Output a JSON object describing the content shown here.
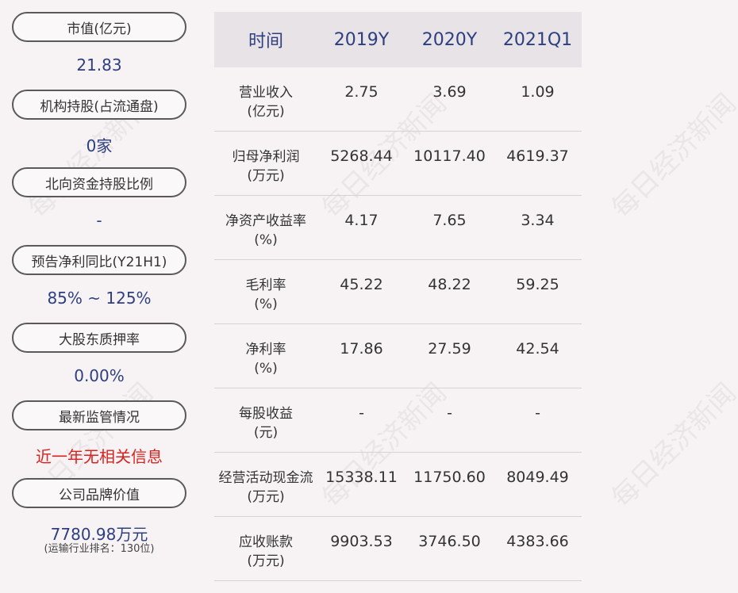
{
  "left": {
    "items": [
      {
        "label": "市值(亿元)",
        "value": "21.83"
      },
      {
        "label": "机构持股(占流通盘)",
        "value": "0家"
      },
      {
        "label": "北向资金持股比例",
        "value": "-"
      },
      {
        "label": "预告净利同比(Y21H1)",
        "value": "85% ~ 125%"
      },
      {
        "label": "大股东质押率",
        "value": "0.00%"
      },
      {
        "label": "最新监管情况",
        "value": "近一年无相关信息"
      },
      {
        "label": "公司品牌价值",
        "value": "7780.98万元",
        "sub": "(运输行业排名：130位)"
      }
    ],
    "highlight_color": "#d5231f",
    "value_color": "#2e3f80"
  },
  "table": {
    "headers": [
      "时间",
      "2019Y",
      "2020Y",
      "2021Q1"
    ],
    "rows": [
      {
        "label": "营业收入",
        "unit": "(亿元)",
        "values": [
          "2.75",
          "3.69",
          "1.09"
        ]
      },
      {
        "label": "归母净利润",
        "unit": "(万元)",
        "values": [
          "5268.44",
          "10117.40",
          "4619.37"
        ]
      },
      {
        "label": "净资产收益率",
        "unit": "(%)",
        "values": [
          "4.17",
          "7.65",
          "3.34"
        ]
      },
      {
        "label": "毛利率",
        "unit": "(%)",
        "values": [
          "45.22",
          "48.22",
          "59.25"
        ]
      },
      {
        "label": "净利率",
        "unit": "(%)",
        "values": [
          "17.86",
          "27.59",
          "42.54"
        ]
      },
      {
        "label": "每股收益",
        "unit": "(元)",
        "values": [
          "-",
          "-",
          "-"
        ]
      },
      {
        "label": "经营活动现金流",
        "unit": "(万元)",
        "values": [
          "15338.11",
          "11750.60",
          "8049.49"
        ]
      },
      {
        "label": "应收账款",
        "unit": "(万元)",
        "values": [
          "9903.53",
          "3746.50",
          "4383.66"
        ]
      }
    ]
  },
  "watermark": "每日经济新闻"
}
